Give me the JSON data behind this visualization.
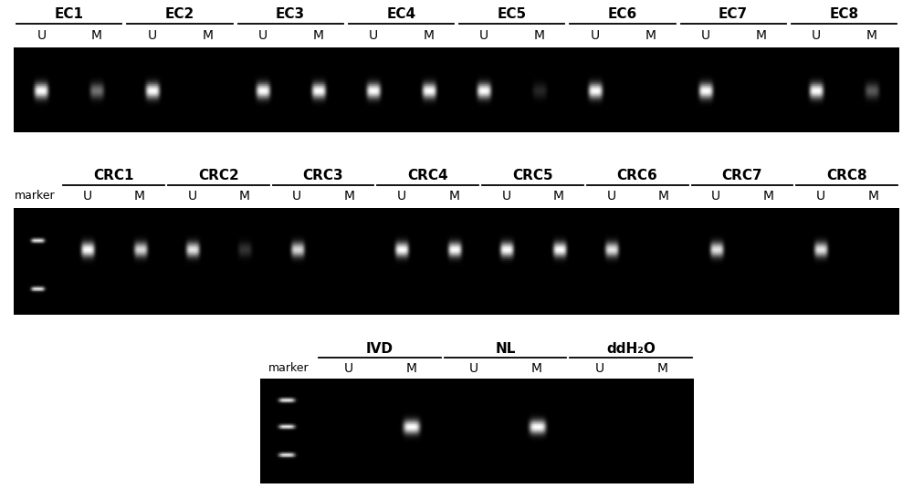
{
  "background": "#000000",
  "figure_bg": "#ffffff",
  "panel1": {
    "title_labels": [
      "EC1",
      "EC2",
      "EC3",
      "EC4",
      "EC5",
      "EC6",
      "EC7",
      "EC8"
    ],
    "col_labels": [
      "U",
      "M",
      "U",
      "M",
      "U",
      "M",
      "U",
      "M",
      "U",
      "M",
      "U",
      "M",
      "U",
      "M",
      "U",
      "M"
    ],
    "bands": [
      {
        "col": 0,
        "brightness": 1.0
      },
      {
        "col": 1,
        "brightness": 0.45
      },
      {
        "col": 2,
        "brightness": 1.0
      },
      {
        "col": 3,
        "brightness": 0.0
      },
      {
        "col": 4,
        "brightness": 1.0
      },
      {
        "col": 5,
        "brightness": 1.0
      },
      {
        "col": 6,
        "brightness": 1.0
      },
      {
        "col": 7,
        "brightness": 1.0
      },
      {
        "col": 8,
        "brightness": 1.0
      },
      {
        "col": 9,
        "brightness": 0.15
      },
      {
        "col": 10,
        "brightness": 1.0
      },
      {
        "col": 11,
        "brightness": 0.0
      },
      {
        "col": 12,
        "brightness": 1.0
      },
      {
        "col": 13,
        "brightness": 0.0
      },
      {
        "col": 14,
        "brightness": 1.0
      },
      {
        "col": 15,
        "brightness": 0.35
      }
    ]
  },
  "panel2": {
    "title_labels": [
      "CRC1",
      "CRC2",
      "CRC3",
      "CRC4",
      "CRC5",
      "CRC6",
      "CRC7",
      "CRC8"
    ],
    "col_labels": [
      "U",
      "M",
      "U",
      "M",
      "U",
      "M",
      "U",
      "M",
      "U",
      "M",
      "U",
      "M",
      "U",
      "M",
      "U",
      "M"
    ],
    "has_marker": true,
    "bands": [
      {
        "col": 0,
        "brightness": 1.0
      },
      {
        "col": 1,
        "brightness": 0.85
      },
      {
        "col": 2,
        "brightness": 0.9
      },
      {
        "col": 3,
        "brightness": 0.2
      },
      {
        "col": 4,
        "brightness": 0.85
      },
      {
        "col": 5,
        "brightness": 0.0
      },
      {
        "col": 6,
        "brightness": 1.0
      },
      {
        "col": 7,
        "brightness": 1.0
      },
      {
        "col": 8,
        "brightness": 1.0
      },
      {
        "col": 9,
        "brightness": 1.0
      },
      {
        "col": 10,
        "brightness": 0.9
      },
      {
        "col": 11,
        "brightness": 0.0
      },
      {
        "col": 12,
        "brightness": 0.9
      },
      {
        "col": 13,
        "brightness": 0.0
      },
      {
        "col": 14,
        "brightness": 0.9
      },
      {
        "col": 15,
        "brightness": 0.0
      }
    ]
  },
  "panel3": {
    "title_labels": [
      "IVD",
      "NL",
      "ddH₂O"
    ],
    "col_labels": [
      "U",
      "M",
      "U",
      "M",
      "U",
      "M"
    ],
    "has_marker": true,
    "bands": [
      {
        "col": 0,
        "brightness": 0.0
      },
      {
        "col": 1,
        "brightness": 1.0
      },
      {
        "col": 2,
        "brightness": 0.0
      },
      {
        "col": 3,
        "brightness": 1.0
      },
      {
        "col": 4,
        "brightness": 0.0
      },
      {
        "col": 5,
        "brightness": 0.0
      }
    ]
  }
}
